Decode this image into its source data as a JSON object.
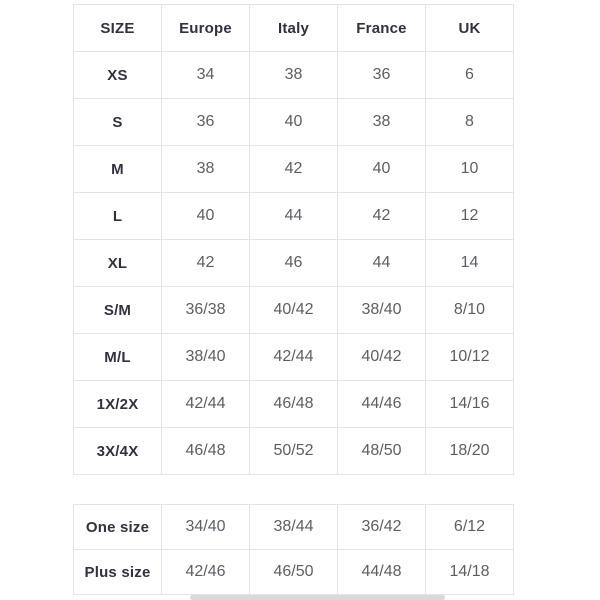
{
  "colors": {
    "background": "#ffffff",
    "border": "#e4e4e4",
    "label_text": "#343040",
    "value_text": "#5d5d66",
    "scrollbar_thumb": "#d9d9d9"
  },
  "size_table": {
    "headers": [
      "SIZE",
      "Europe",
      "Italy",
      "France",
      "UK"
    ],
    "rows": [
      {
        "label": "XS",
        "values": [
          "34",
          "38",
          "36",
          "6"
        ]
      },
      {
        "label": "S",
        "values": [
          "36",
          "40",
          "38",
          "8"
        ]
      },
      {
        "label": "M",
        "values": [
          "38",
          "42",
          "40",
          "10"
        ]
      },
      {
        "label": "L",
        "values": [
          "40",
          "44",
          "42",
          "12"
        ]
      },
      {
        "label": "XL",
        "values": [
          "42",
          "46",
          "44",
          "14"
        ]
      },
      {
        "label": "S/M",
        "values": [
          "36/38",
          "40/42",
          "38/40",
          "8/10"
        ]
      },
      {
        "label": "M/L",
        "values": [
          "38/40",
          "42/44",
          "40/42",
          "10/12"
        ]
      },
      {
        "label": "1X/2X",
        "values": [
          "42/44",
          "46/48",
          "44/46",
          "14/16"
        ]
      },
      {
        "label": "3X/4X",
        "values": [
          "46/48",
          "50/52",
          "48/50",
          "18/20"
        ]
      }
    ]
  },
  "special_table": {
    "rows": [
      {
        "label": "One size",
        "values": [
          "34/40",
          "38/44",
          "36/42",
          "6/12"
        ]
      },
      {
        "label": "Plus size",
        "values": [
          "42/46",
          "46/50",
          "44/48",
          "14/18"
        ]
      }
    ]
  }
}
